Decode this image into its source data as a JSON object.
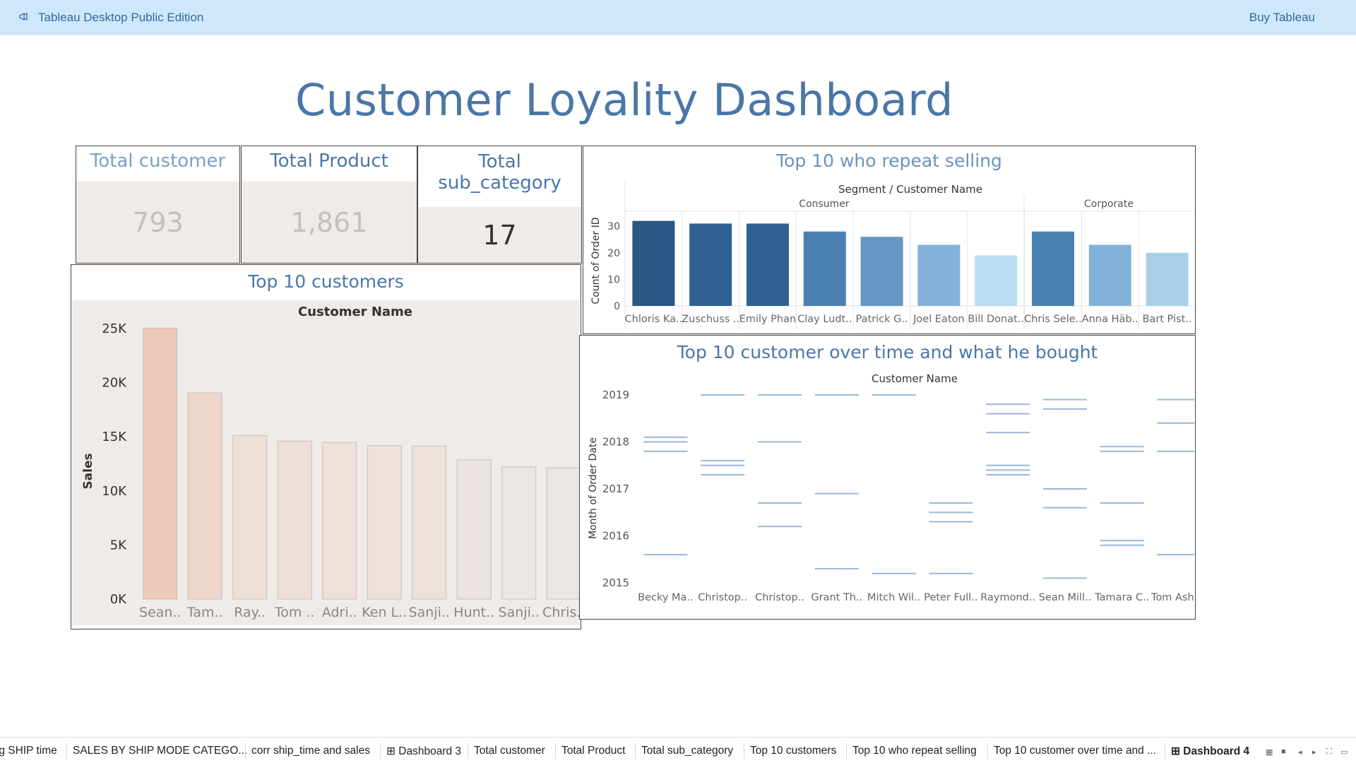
{
  "topbar": {
    "app_name": "Tableau Desktop Public Edition",
    "buy_label": "Buy Tableau",
    "logo_icon": "megaphone-icon"
  },
  "dashboard": {
    "title": "Customer Loyality Dashboard"
  },
  "kpis": {
    "total_customer": {
      "title": "Total customer",
      "value": "793"
    },
    "total_product": {
      "title": "Total Product",
      "value": "1,861"
    },
    "total_subcategory": {
      "title_line1": "Total",
      "title_line2": "sub_category",
      "value": "17"
    }
  },
  "top10_customers": {
    "title": "Top 10 customers",
    "header": "Customer Name",
    "ylabel": "Sales",
    "yticks": [
      "25K",
      "20K",
      "15K",
      "10K",
      "5K",
      "0K"
    ],
    "colors": {
      "max": "#efc9b7",
      "min": "#ece6e2",
      "stroke": "#c9bfb8",
      "bg": "#efebe8"
    }
  },
  "repeat_selling": {
    "title": "Top 10 who repeat selling",
    "header": "Segment  /  Customer Name",
    "segments": [
      "Consumer",
      "Corporate"
    ],
    "ylabel": "Count of Order ID",
    "yticks": [
      "30",
      "20",
      "10",
      "0"
    ]
  },
  "over_time": {
    "title": "Top 10 customer over time and what he bought",
    "header": "Customer Name",
    "ylabel": "Month of Order Date",
    "yticks": [
      "2019",
      "2018",
      "2017",
      "2016",
      "2015"
    ]
  },
  "chart_data": [
    {
      "type": "bar",
      "title": "Top 10 customers",
      "xlabel": "Customer Name",
      "ylabel": "Sales",
      "ylim": [
        0,
        25000
      ],
      "categories": [
        "Sean..",
        "Tam..",
        "Ray..",
        "Tom ..",
        "Adri..",
        "Ken L..",
        "Sanji..",
        "Hunt..",
        "Sanji..",
        "Chris.."
      ],
      "values": [
        25043,
        19052,
        15117,
        14595,
        14473,
        14175,
        14142,
        12873,
        12210,
        12129
      ]
    },
    {
      "type": "bar",
      "title": "Top 10 who repeat selling",
      "xlabel": "Segment / Customer Name",
      "ylabel": "Count of Order ID",
      "ylim": [
        0,
        33
      ],
      "categories": [
        "Chloris Ka..",
        "Zuschuss ..",
        "Emily Phan",
        "Clay Ludt..",
        "Patrick G..",
        "Joel Eaton",
        "Bill Donat..",
        "Chris Sele..",
        "Anna Häb..",
        "Bart Pist.."
      ],
      "segments": [
        "Consumer",
        "Consumer",
        "Consumer",
        "Consumer",
        "Consumer",
        "Consumer",
        "Consumer",
        "Corporate",
        "Corporate",
        "Corporate"
      ],
      "values": [
        32,
        31,
        31,
        28,
        26,
        23,
        19,
        28,
        23,
        20
      ],
      "colors": [
        "#2a5783",
        "#2e6094",
        "#2e6094",
        "#4a7fb1",
        "#6497c4",
        "#83b2db",
        "#b9ddf1",
        "#4a7fb1",
        "#83b2db",
        "#a9d0ea"
      ]
    },
    {
      "type": "scatter",
      "title": "Top 10 customer over time and what he bought",
      "xlabel": "Customer Name",
      "ylabel": "Month of Order Date",
      "ylim": [
        2015,
        2019
      ],
      "categories": [
        "Becky Ma..",
        "Christop..",
        "Christop..",
        "Grant Th..",
        "Mitch Wil..",
        "Peter Full..",
        "Raymond..",
        "Sean Mill..",
        "Tamara C..",
        "Tom Ashb.."
      ],
      "series": [
        {
          "x": "Becky Ma..",
          "y": [
            2018.1,
            2018.0,
            2017.8,
            2015.6
          ]
        },
        {
          "x": "Christop..",
          "y": [
            2019.0,
            2017.6,
            2017.5,
            2017.3
          ]
        },
        {
          "x": "Christop..",
          "y": [
            2019.0,
            2018.0,
            2016.7,
            2016.2
          ]
        },
        {
          "x": "Grant Th..",
          "y": [
            2019.0,
            2016.9,
            2015.3
          ]
        },
        {
          "x": "Mitch Wil..",
          "y": [
            2019.0,
            2015.2
          ]
        },
        {
          "x": "Peter Full..",
          "y": [
            2016.7,
            2016.5,
            2016.3,
            2015.2
          ]
        },
        {
          "x": "Raymond..",
          "y": [
            2018.8,
            2018.6,
            2018.2,
            2017.5,
            2017.4,
            2017.3
          ]
        },
        {
          "x": "Sean Mill..",
          "y": [
            2018.9,
            2018.7,
            2017.0,
            2016.6,
            2015.1
          ]
        },
        {
          "x": "Tamara C..",
          "y": [
            2017.9,
            2017.8,
            2016.7,
            2015.9,
            2015.8
          ]
        },
        {
          "x": "Tom Ashb..",
          "y": [
            2018.9,
            2018.4,
            2017.8,
            2015.6
          ]
        }
      ]
    }
  ],
  "bottombar": {
    "tabs": [
      {
        "label": "avg SHIP time",
        "active": false
      },
      {
        "label": "SALES BY SHIP MODE CATEGO...",
        "active": false
      },
      {
        "label": "corr ship_time and sales",
        "active": false
      },
      {
        "label": "⊞ Dashboard 3",
        "active": false
      },
      {
        "label": "Total customer",
        "active": false
      },
      {
        "label": "Total Product",
        "active": false
      },
      {
        "label": "Total sub_category",
        "active": false
      },
      {
        "label": "Top 10 customers",
        "active": false
      },
      {
        "label": "Top 10 who repeat selling",
        "active": false
      },
      {
        "label": "Top 10 customer over time and ...",
        "active": false
      },
      {
        "label": "⊞ Dashboard 4",
        "active": true
      }
    ],
    "controls": [
      "grid-view-icon",
      "filmstrip-icon",
      "prev-sheet-icon",
      "next-sheet-icon",
      "fullscreen-icon",
      "present-icon"
    ]
  }
}
